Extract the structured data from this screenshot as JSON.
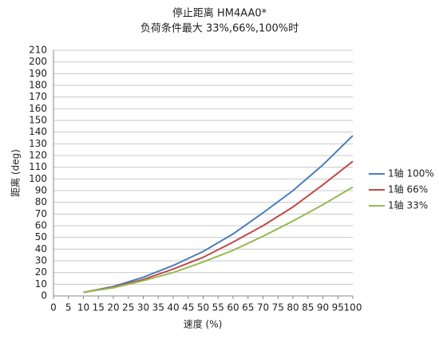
{
  "chart_data": {
    "type": "line",
    "title": "停止距离 HM4AA0*",
    "subtitle": "负荷条件最大 33%,66%,100%时",
    "x_label": "速度 (%)",
    "y_label": "距离 (deg)",
    "x": [
      10,
      20,
      30,
      40,
      50,
      60,
      70,
      80,
      90,
      100
    ],
    "series": [
      {
        "name": "1轴 100%",
        "color": "#4a7ebb",
        "values": [
          3,
          8,
          16,
          26,
          38,
          53,
          71,
          90,
          112,
          137
        ]
      },
      {
        "name": "1轴 66%",
        "color": "#be4b48",
        "values": [
          3,
          7.5,
          14,
          23,
          33,
          46,
          60,
          76,
          95,
          115
        ]
      },
      {
        "name": "1轴 33%",
        "color": "#98b954",
        "values": [
          3,
          7,
          13,
          20,
          29,
          39,
          51,
          64,
          78,
          93
        ]
      }
    ],
    "xlim": [
      0,
      100
    ],
    "xticks": [
      0,
      5,
      10,
      15,
      20,
      25,
      30,
      35,
      40,
      45,
      50,
      55,
      60,
      65,
      70,
      75,
      80,
      85,
      90,
      95,
      100
    ],
    "ylim": [
      0,
      210
    ],
    "yticks": [
      0,
      10,
      20,
      30,
      40,
      50,
      60,
      70,
      80,
      90,
      100,
      110,
      120,
      130,
      140,
      150,
      160,
      170,
      180,
      190,
      200,
      210
    ],
    "grid": true,
    "legend": "right"
  }
}
